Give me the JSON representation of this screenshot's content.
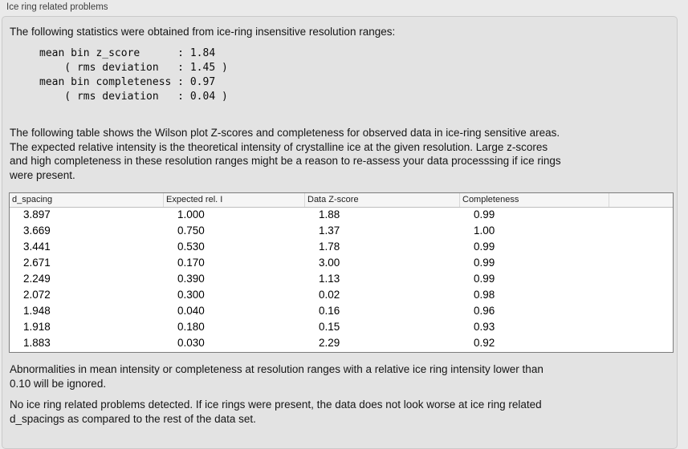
{
  "panel": {
    "title": "Ice ring related problems"
  },
  "stats": {
    "intro": "The following statistics were obtained from ice-ring insensitive resolution ranges:",
    "block": "mean bin z_score      : 1.84\n    ( rms deviation   : 1.45 )\nmean bin completeness : 0.97\n    ( rms deviation   : 0.04 )"
  },
  "description": "The following table shows the Wilson plot Z-scores and completeness for observed data in ice-ring sensitive areas.\nThe expected relative intensity is the theoretical intensity of crystalline ice at the given resolution. Large z-scores\nand high completeness in these resolution ranges might be a reason to re-assess your data processsing if ice rings\nwere present.",
  "table": {
    "columns": [
      {
        "label": "d_spacing"
      },
      {
        "label": "Expected rel. I"
      },
      {
        "label": "Data Z-score"
      },
      {
        "label": "Completeness"
      },
      {
        "label": ""
      }
    ],
    "rows": [
      [
        "3.897",
        "1.000",
        "1.88",
        "0.99"
      ],
      [
        "3.669",
        "0.750",
        "1.37",
        "1.00"
      ],
      [
        "3.441",
        "0.530",
        "1.78",
        "0.99"
      ],
      [
        "2.671",
        "0.170",
        "3.00",
        "0.99"
      ],
      [
        "2.249",
        "0.390",
        "1.13",
        "0.99"
      ],
      [
        "2.072",
        "0.300",
        "0.02",
        "0.98"
      ],
      [
        "1.948",
        "0.040",
        "0.16",
        "0.96"
      ],
      [
        "1.918",
        "0.180",
        "0.15",
        "0.93"
      ],
      [
        "1.883",
        "0.030",
        "2.29",
        "0.92"
      ]
    ]
  },
  "notes": {
    "ignore_note": "Abnormalities in mean intensity or completeness at resolution ranges with a relative ice ring intensity lower than\n0.10 will be ignored.",
    "conclusion": "No ice ring related problems detected. If ice rings were present, the data does not look worse at ice ring related\nd_spacings as compared to the rest of the data set."
  },
  "colors": {
    "window_background": "#eaeaea",
    "panel_background": "#e3e3e3",
    "panel_border": "#cacaca",
    "table_border": "#7c7c7c",
    "table_header_background": "#f5f5f5",
    "table_body_background": "#ffffff",
    "text": "#1a1a1a"
  }
}
